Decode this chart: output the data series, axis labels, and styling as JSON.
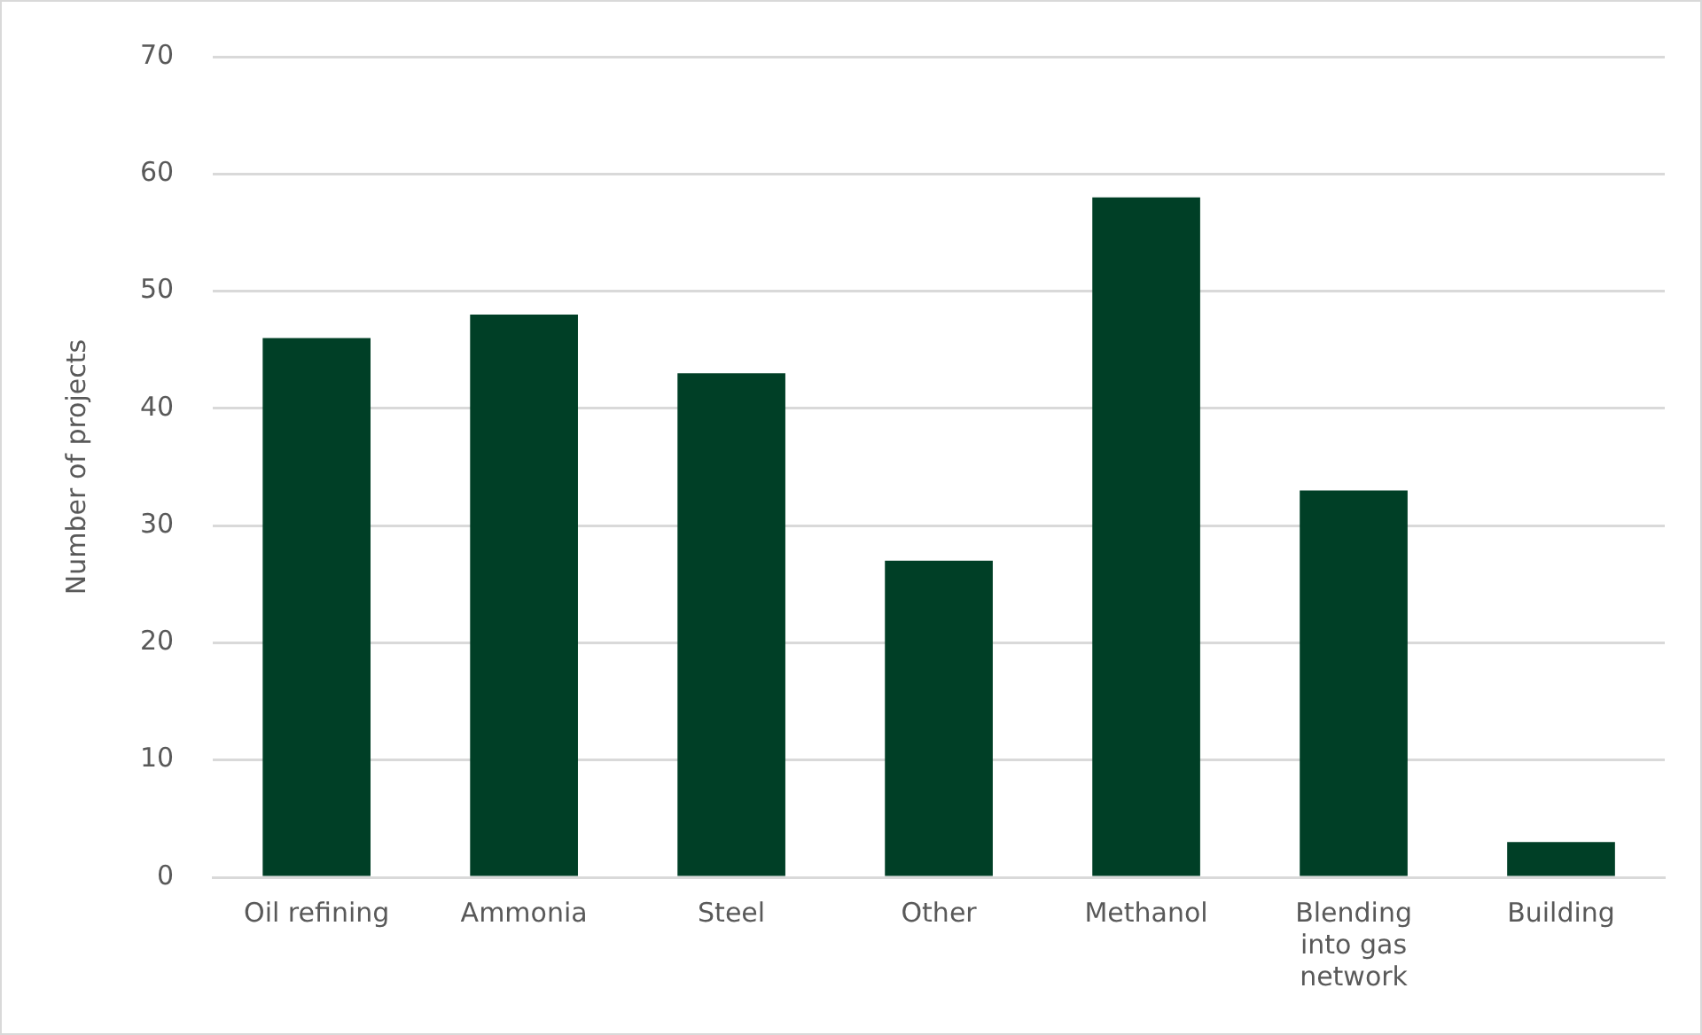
{
  "chart_data": {
    "type": "bar",
    "ylabel": "Number of projects",
    "categories": [
      "Oil refining",
      "Ammonia",
      "Steel",
      "Other",
      "Methanol",
      "Blending into gas network",
      "Building"
    ],
    "values": [
      46,
      48,
      43,
      27,
      58,
      33,
      3
    ],
    "color": "#003f26",
    "ylim": [
      0,
      70
    ],
    "yticks": [
      0,
      10,
      20,
      30,
      40,
      50,
      60,
      70
    ],
    "grid": "y",
    "legend": false
  }
}
